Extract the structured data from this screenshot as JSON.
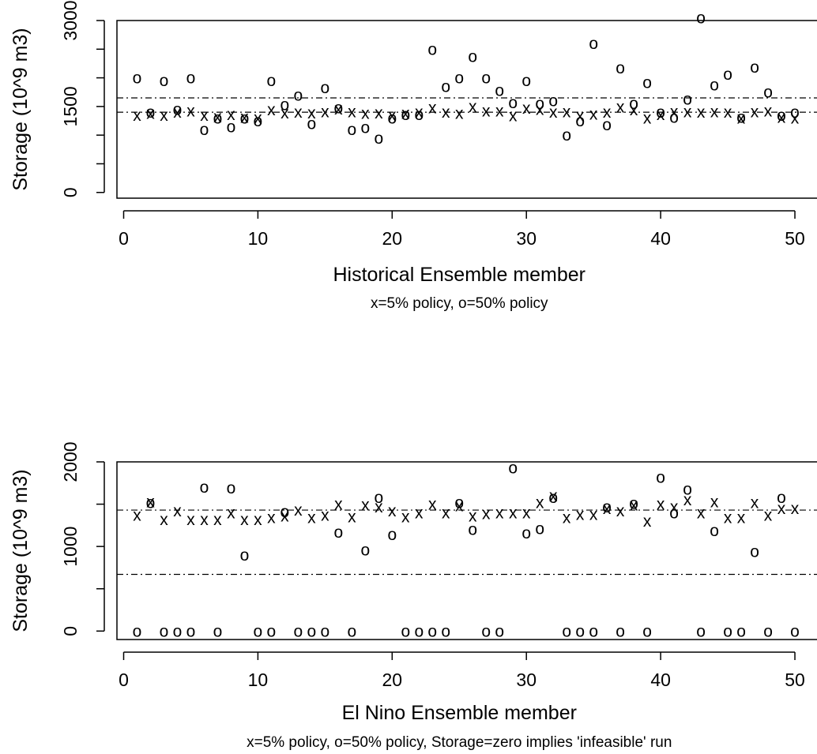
{
  "chart_data": [
    {
      "type": "scatter",
      "xlabel": "Historical Ensemble member",
      "ylabel": "Storage (10^9 m3)",
      "caption": "x=5% policy, o=50% policy",
      "xticks": [
        0,
        10,
        20,
        30,
        40,
        50
      ],
      "yticks": [
        0,
        500,
        1000,
        1500,
        2000,
        2500,
        3000
      ],
      "ytick_labels": [
        "0",
        "",
        "",
        "1500",
        "",
        "",
        "3000"
      ],
      "xlim": [
        -0.5,
        52
      ],
      "ylim": [
        -100,
        3000
      ],
      "grid": false,
      "reference_lines": [
        1400,
        1650
      ],
      "series": [
        {
          "name": "x",
          "marker": "x",
          "x": [
            1,
            2,
            3,
            4,
            5,
            6,
            7,
            8,
            9,
            10,
            11,
            12,
            13,
            14,
            15,
            16,
            17,
            18,
            19,
            20,
            21,
            22,
            23,
            24,
            25,
            26,
            27,
            28,
            29,
            30,
            31,
            32,
            33,
            34,
            35,
            36,
            37,
            38,
            39,
            40,
            41,
            42,
            43,
            44,
            45,
            46,
            47,
            48,
            49,
            50
          ],
          "y": [
            1350,
            1380,
            1350,
            1400,
            1420,
            1350,
            1320,
            1360,
            1310,
            1300,
            1440,
            1390,
            1400,
            1390,
            1410,
            1460,
            1410,
            1380,
            1390,
            1350,
            1380,
            1400,
            1480,
            1400,
            1380,
            1500,
            1420,
            1420,
            1340,
            1470,
            1450,
            1400,
            1410,
            1340,
            1370,
            1400,
            1490,
            1440,
            1300,
            1360,
            1410,
            1410,
            1400,
            1410,
            1400,
            1300,
            1410,
            1420,
            1310,
            1300
          ]
        },
        {
          "name": "o",
          "marker": "o",
          "x": [
            1,
            2,
            3,
            4,
            5,
            6,
            7,
            8,
            9,
            10,
            11,
            12,
            13,
            14,
            15,
            16,
            17,
            18,
            19,
            20,
            21,
            22,
            23,
            24,
            25,
            26,
            27,
            28,
            29,
            30,
            31,
            32,
            33,
            34,
            35,
            36,
            37,
            38,
            39,
            40,
            41,
            42,
            43,
            44,
            45,
            46,
            47,
            48,
            49,
            50
          ],
          "y": [
            2000,
            1400,
            1950,
            1450,
            2000,
            1100,
            1300,
            1150,
            1300,
            1250,
            1950,
            1530,
            1700,
            1200,
            1830,
            1480,
            1100,
            1130,
            950,
            1300,
            1360,
            1360,
            2500,
            1850,
            2000,
            2370,
            2000,
            1780,
            1570,
            1950,
            1550,
            1600,
            1000,
            1250,
            2600,
            1180,
            2170,
            1550,
            1920,
            1400,
            1310,
            1630,
            3050,
            1880,
            2060,
            1310,
            2190,
            1750,
            1350,
            1400
          ]
        }
      ]
    },
    {
      "type": "scatter",
      "xlabel": "El Nino Ensemble member",
      "ylabel": "Storage (10^9 m3)",
      "caption": "x=5% policy, o=50% policy, Storage=zero implies 'infeasible' run",
      "xticks": [
        0,
        10,
        20,
        30,
        40,
        50
      ],
      "yticks": [
        0,
        500,
        1000,
        1500,
        2000
      ],
      "ytick_labels": [
        "0",
        "",
        "1000",
        "",
        "2000"
      ],
      "xlim": [
        -0.5,
        52
      ],
      "ylim": [
        -100,
        2000
      ],
      "grid": false,
      "reference_lines": [
        1430,
        670
      ],
      "series": [
        {
          "name": "x",
          "marker": "x",
          "x": [
            1,
            2,
            3,
            4,
            5,
            6,
            7,
            8,
            9,
            10,
            11,
            12,
            13,
            14,
            15,
            16,
            17,
            18,
            19,
            20,
            21,
            22,
            23,
            24,
            25,
            26,
            27,
            28,
            29,
            30,
            31,
            32,
            33,
            34,
            35,
            36,
            37,
            38,
            39,
            40,
            41,
            42,
            43,
            44,
            45,
            46,
            47,
            48,
            49,
            50
          ],
          "y": [
            1370,
            1530,
            1320,
            1420,
            1320,
            1320,
            1320,
            1400,
            1320,
            1320,
            1340,
            1360,
            1430,
            1340,
            1370,
            1500,
            1350,
            1490,
            1470,
            1420,
            1350,
            1400,
            1500,
            1400,
            1480,
            1360,
            1390,
            1400,
            1400,
            1400,
            1520,
            1600,
            1340,
            1380,
            1380,
            1450,
            1420,
            1490,
            1300,
            1500,
            1470,
            1550,
            1400,
            1530,
            1340,
            1340,
            1520,
            1370,
            1450,
            1450
          ]
        },
        {
          "name": "o",
          "marker": "o",
          "x": [
            1,
            2,
            3,
            4,
            5,
            6,
            7,
            8,
            9,
            10,
            11,
            12,
            13,
            14,
            15,
            16,
            17,
            18,
            19,
            20,
            21,
            22,
            23,
            24,
            25,
            26,
            27,
            28,
            29,
            30,
            31,
            32,
            33,
            34,
            35,
            36,
            37,
            38,
            39,
            40,
            41,
            42,
            43,
            44,
            45,
            46,
            47,
            48,
            49,
            50
          ],
          "y": [
            0,
            1520,
            0,
            0,
            0,
            1700,
            0,
            1690,
            900,
            0,
            0,
            1410,
            0,
            0,
            0,
            1170,
            0,
            960,
            1580,
            1140,
            0,
            0,
            0,
            0,
            1520,
            1200,
            0,
            0,
            1930,
            1160,
            1210,
            1580,
            0,
            0,
            0,
            1470,
            0,
            1510,
            0,
            1820,
            1400,
            1680,
            0,
            1190,
            0,
            0,
            940,
            0,
            1580,
            0
          ]
        }
      ]
    }
  ]
}
